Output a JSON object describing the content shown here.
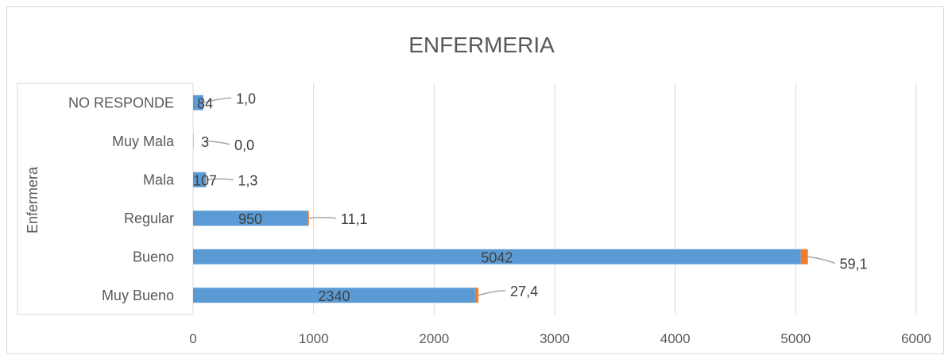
{
  "chart_data": {
    "type": "bar",
    "orientation": "horizontal",
    "stacked": true,
    "title": "ENFERMERIA",
    "ylabel": "Enfermera",
    "xlabel": "",
    "categories": [
      "Muy Bueno",
      "Bueno",
      "Regular",
      "Mala",
      "Muy Mala",
      "NO RESPONDE"
    ],
    "series": [
      {
        "color": "#5b9bd5",
        "values": [
          2340,
          5042,
          950,
          107,
          3,
          84
        ],
        "labels": [
          "2340",
          "5042",
          "950",
          "107",
          "3",
          "84"
        ]
      },
      {
        "color": "#ed7d31",
        "values": [
          27.4,
          59.1,
          11.1,
          1.3,
          0.0,
          1.0
        ],
        "labels": [
          "27,4",
          "59,1",
          "11,1",
          "1,3",
          "0,0",
          "1,0"
        ]
      }
    ],
    "xlim": [
      0,
      6000
    ],
    "xticks": [
      "0",
      "1000",
      "2000",
      "3000",
      "4000",
      "5000",
      "6000"
    ],
    "grid": "vertical",
    "legend": "none"
  }
}
